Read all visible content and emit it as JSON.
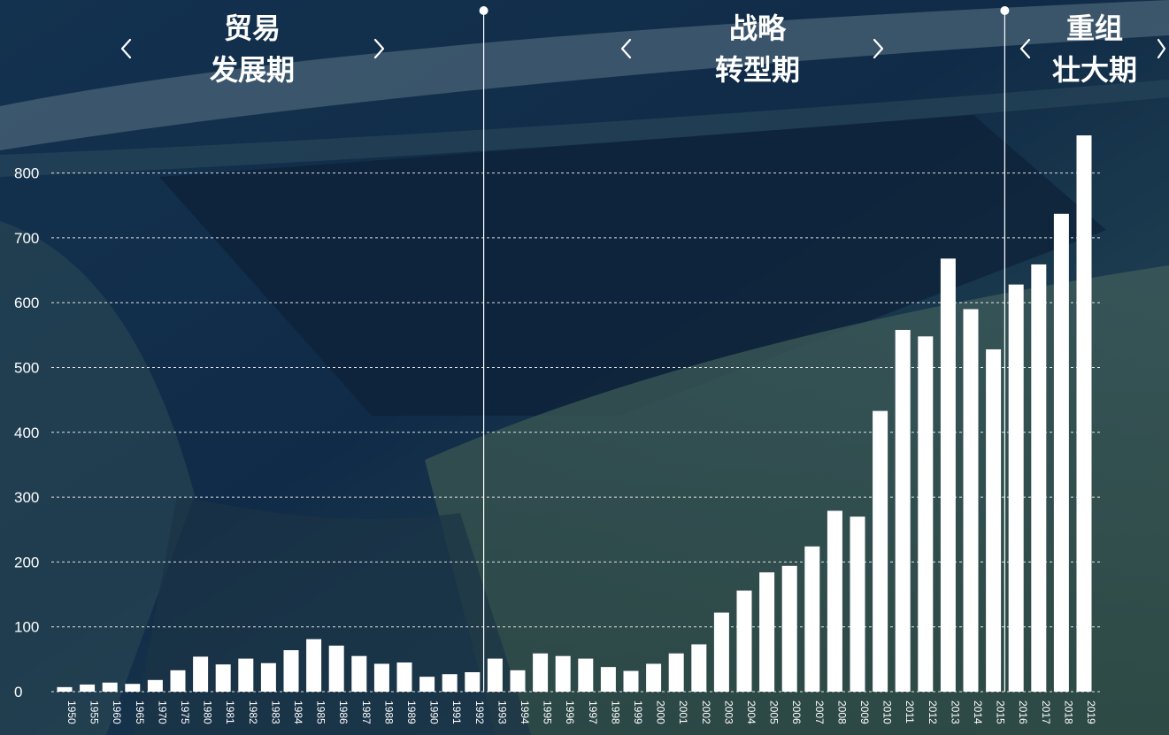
{
  "colors": {
    "bar": "#ffffff",
    "overlay": "#0e2a4a"
  },
  "periods": [
    {
      "line1": "贸易",
      "line2": "发展期"
    },
    {
      "line1": "战略",
      "line2": "转型期"
    },
    {
      "line1": "重组",
      "line2": "壮大期"
    }
  ],
  "chart_data": {
    "type": "bar",
    "categories": [
      "1950",
      "1955",
      "1960",
      "1965",
      "1970",
      "1975",
      "1980",
      "1981",
      "1982",
      "1983",
      "1984",
      "1985",
      "1986",
      "1987",
      "1988",
      "1989",
      "1990",
      "1991",
      "1992",
      "1993",
      "1994",
      "1995",
      "1996",
      "1997",
      "1998",
      "1999",
      "2000",
      "2001",
      "2002",
      "2003",
      "2004",
      "2005",
      "2006",
      "2007",
      "2008",
      "2009",
      "2010",
      "2011",
      "2012",
      "2013",
      "2014",
      "2015",
      "2016",
      "2017",
      "2018",
      "2019"
    ],
    "values": [
      7,
      11,
      14,
      12,
      18,
      33,
      54,
      42,
      51,
      44,
      64,
      81,
      71,
      55,
      43,
      45,
      23,
      27,
      30,
      51,
      33,
      59,
      55,
      51,
      38,
      32,
      43,
      59,
      73,
      122,
      156,
      184,
      194,
      224,
      279,
      270,
      433,
      558,
      548,
      668,
      590,
      528,
      628,
      659,
      737,
      858
    ],
    "yticks": [
      0,
      100,
      200,
      300,
      400,
      500,
      600,
      700,
      800
    ],
    "ylim": [
      0,
      860
    ],
    "grid": true,
    "dividers_after": [
      "1992",
      "2015"
    ]
  }
}
